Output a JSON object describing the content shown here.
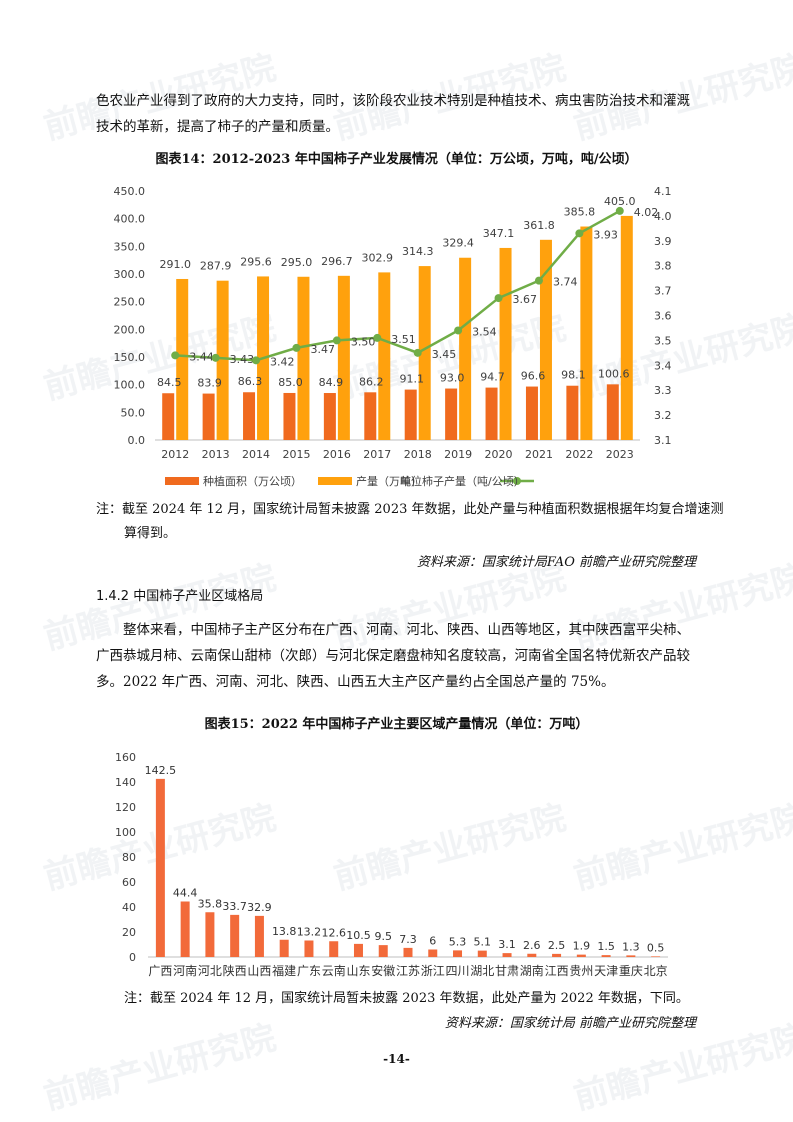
{
  "watermark": "前瞻产业研究院",
  "intro_paragraph": "色农业产业得到了政府的大力支持，同时，该阶段农业技术特别是种植技术、病虫害防治技术和灌溉技术的革新，提高了柿子的产量和质量。",
  "figure14": {
    "title": "图表14：2012-2023 年中国柿子产业发展情况（单位：万公顷，万吨，吨/公顷）",
    "note": "注：截至 2024 年 12 月，国家统计局暂未披露 2023 年数据，此处产量与种植面积数据根据年均复合增速测算得到。",
    "source": "资料来源：国家统计局FAO  前瞻产业研究院整理"
  },
  "section_heading": "1.4.2  中国柿子产业区域格局",
  "body_paragraph": "整体来看，中国柿子主产区分布在广西、河南、河北、陕西、山西等地区，其中陕西富平尖柿、广西恭城月柿、云南保山甜柿（次郎）与河北保定磨盘柿知名度较高，河南省全国名特优新农产品较多。2022 年广西、河南、河北、陕西、山西五大主产区产量约占全国总产量的 75%。",
  "figure15": {
    "title": "图表15：2022 年中国柿子产业主要区域产量情况（单位：万吨）",
    "note": "注：截至 2024 年 12 月，国家统计局暂未披露 2023 年数据，此处产量为 2022 年数据，下同。",
    "source": "资料来源：国家统计局 前瞻产业研究院整理"
  },
  "page_number": "-14-",
  "colors": {
    "area": "#F06A1E",
    "output": "#FFA10D",
    "yield": "#70AD47",
    "region_bar": "#F26A3A"
  },
  "chart_data": [
    {
      "type": "bar",
      "categories": [
        "2012",
        "2013",
        "2014",
        "2015",
        "2016",
        "2017",
        "2018",
        "2019",
        "2020",
        "2021",
        "2022",
        "2023"
      ],
      "series": [
        {
          "name": "种植面积（万公顷）",
          "type": "bar",
          "values": [
            84.5,
            83.9,
            86.3,
            85.0,
            84.9,
            86.2,
            91.1,
            93.0,
            94.7,
            96.6,
            98.1,
            100.6
          ]
        },
        {
          "name": "产量（万吨）",
          "type": "bar",
          "values": [
            291.0,
            287.9,
            295.6,
            295.0,
            296.7,
            302.9,
            314.3,
            329.4,
            347.1,
            361.8,
            385.8,
            405.0
          ]
        },
        {
          "name": "单位柿子产量（吨/公顷）",
          "type": "line",
          "axis": "right",
          "values": [
            3.44,
            3.43,
            3.42,
            3.47,
            3.5,
            3.51,
            3.45,
            3.54,
            3.67,
            3.74,
            3.93,
            4.02
          ]
        }
      ],
      "ylim": [
        0,
        450
      ],
      "yticks": [
        "0.0",
        "50.0",
        "100.0",
        "150.0",
        "200.0",
        "250.0",
        "300.0",
        "350.0",
        "400.0",
        "450.0"
      ],
      "y2lim": [
        3.1,
        4.1
      ],
      "y2ticks": [
        "3.1",
        "3.2",
        "3.3",
        "3.4",
        "3.5",
        "3.6",
        "3.7",
        "3.8",
        "3.9",
        "4.0",
        "4.1"
      ],
      "legend_position": "bottom",
      "grid": false
    },
    {
      "type": "bar",
      "categories": [
        "广西",
        "河南",
        "河北",
        "陕西",
        "山西",
        "福建",
        "广东",
        "云南",
        "山东",
        "安徽",
        "江苏",
        "浙江",
        "四川",
        "湖北",
        "甘肃",
        "湖南",
        "江西",
        "贵州",
        "天津",
        "重庆",
        "北京"
      ],
      "values": [
        142.5,
        44.4,
        35.8,
        33.7,
        32.9,
        13.8,
        13.2,
        12.6,
        10.5,
        9.5,
        7.3,
        6,
        5.3,
        5.1,
        3.1,
        2.6,
        2.5,
        1.9,
        1.5,
        1.3,
        0.5
      ],
      "labels": [
        "142.5",
        "44.4",
        "35.8",
        "33.7",
        "32.9",
        "13.8",
        "13.2",
        "12.6",
        "10.5",
        "9.5",
        "7.3",
        "6",
        "5.3",
        "5.1",
        "3.1",
        "2.6",
        "2.5",
        "1.9",
        "1.5",
        "1.3",
        "0.5"
      ],
      "ylim": [
        0,
        160
      ],
      "yticks": [
        "0",
        "20",
        "40",
        "60",
        "80",
        "100",
        "120",
        "140",
        "160"
      ],
      "grid": false
    }
  ]
}
